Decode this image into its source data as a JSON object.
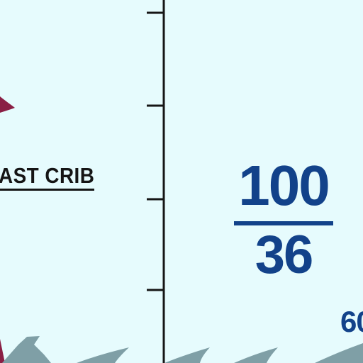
{
  "cut_label": "AST CRIB",
  "fraction": {
    "numerator": "100",
    "denominator": "36"
  },
  "corner_number": "60",
  "colors": {
    "background": "#e6fbfd",
    "meat": "#8a1f45",
    "ink": "#151515",
    "accent_blue": "#12428a",
    "fish": "#7f9fa6"
  }
}
